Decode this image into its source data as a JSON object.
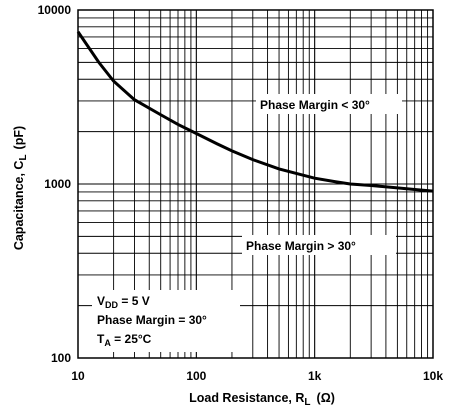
{
  "chart_data": {
    "type": "line",
    "xscale": "log",
    "yscale": "log",
    "xlim": [
      10,
      10000
    ],
    "ylim": [
      100,
      10000
    ],
    "grid": true,
    "xlabel": {
      "main": "Load Resistance, R",
      "sub": "L",
      "unit": "(Ω)"
    },
    "ylabel": {
      "main": "Capacitance, C",
      "sub": "L",
      "unit": "(pF)"
    },
    "xticks": [
      {
        "value": 10,
        "label": "10"
      },
      {
        "value": 100,
        "label": "100"
      },
      {
        "value": 1000,
        "label": "1k"
      },
      {
        "value": 10000,
        "label": "10k"
      }
    ],
    "yticks": [
      {
        "value": 100,
        "label": "100"
      },
      {
        "value": 1000,
        "label": "1000"
      },
      {
        "value": 10000,
        "label": "10000"
      }
    ],
    "series": [
      {
        "x": [
          10,
          15,
          20,
          30,
          50,
          70,
          100,
          150,
          200,
          300,
          500,
          700,
          1000,
          1500,
          2000,
          3000,
          5000,
          7000,
          10000
        ],
        "y": [
          7500,
          5000,
          3900,
          3050,
          2500,
          2200,
          1950,
          1700,
          1550,
          1380,
          1220,
          1150,
          1080,
          1030,
          1000,
          980,
          950,
          930,
          910
        ]
      }
    ],
    "annotations": {
      "upper": "Phase Margin < 30°",
      "lower": "Phase Margin > 30°",
      "conditions": [
        {
          "main": "V",
          "sub": "DD",
          "rest": " = 5 V"
        },
        {
          "main": "Phase Margin = 30°",
          "sub": "",
          "rest": ""
        },
        {
          "main": "T",
          "sub": "A",
          "rest": " = 25°C"
        }
      ]
    }
  }
}
